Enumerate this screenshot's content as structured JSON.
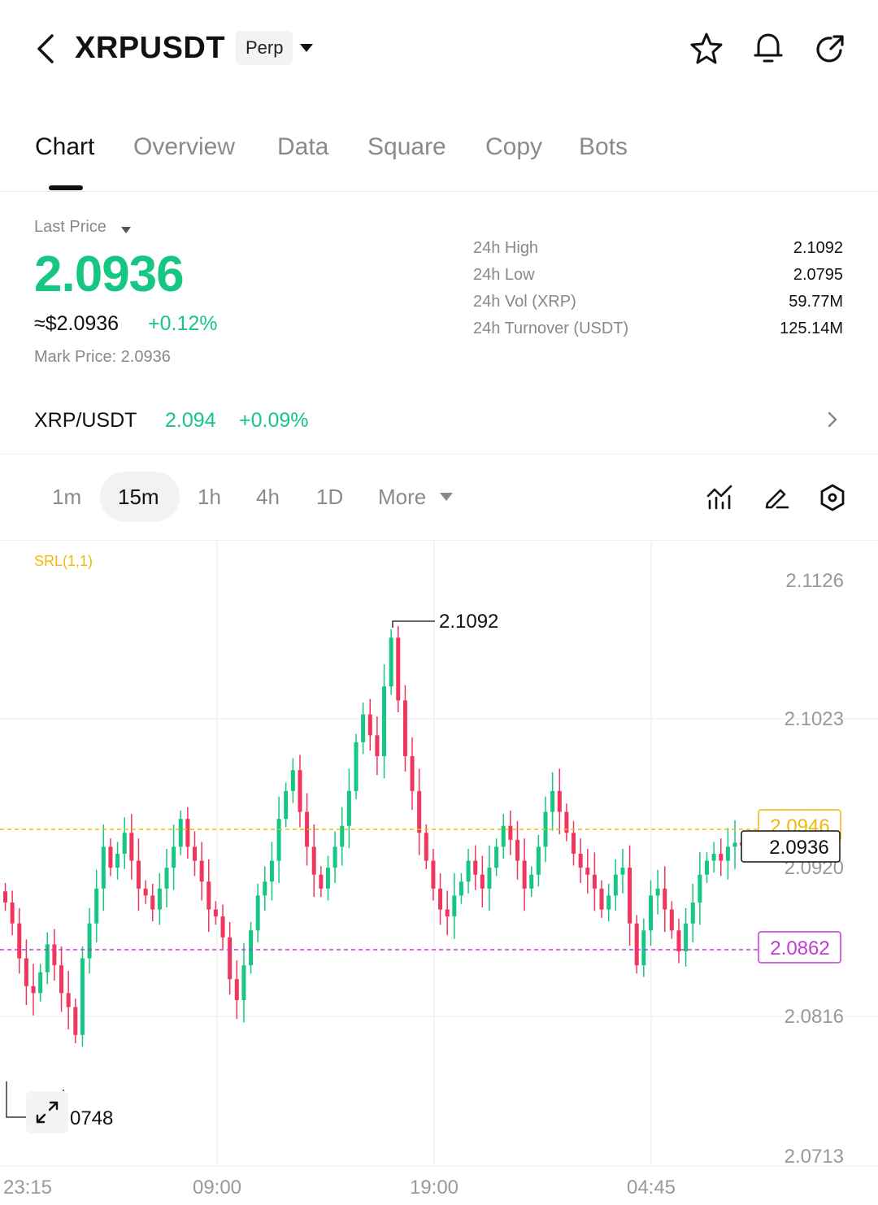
{
  "header": {
    "symbol": "XRPUSDT",
    "contract_type": "Perp",
    "icons": [
      "back-arrow-icon",
      "dropdown-caret-icon",
      "star-icon",
      "bell-icon",
      "share-icon"
    ]
  },
  "tabs": [
    {
      "label": "Chart",
      "active": true
    },
    {
      "label": "Overview"
    },
    {
      "label": "Data"
    },
    {
      "label": "Square"
    },
    {
      "label": "Copy"
    },
    {
      "label": "Bots"
    }
  ],
  "price": {
    "label": "Last Price",
    "last": "2.0936",
    "usd": "≈$2.0936",
    "change": "+0.12%",
    "mark": "Mark Price: 2.0936"
  },
  "stats": [
    {
      "label": "24h  High",
      "value": "2.1092"
    },
    {
      "label": "24h  Low",
      "value": "2.0795"
    },
    {
      "label": "24h  Vol (XRP)",
      "value": "59.77M"
    },
    {
      "label": "24h  Turnover (USDT)",
      "value": "125.14M"
    }
  ],
  "spot": {
    "pair": "XRP/USDT",
    "price": "2.094",
    "change": "+0.09%"
  },
  "timeframes": {
    "items": [
      "1m",
      "15m",
      "1h",
      "4h",
      "1D"
    ],
    "active": "15m",
    "more_label": "More"
  },
  "colors": {
    "up": "#16c784",
    "down": "#f0365d",
    "indicator": "#f0b90b",
    "marker": "#c23bd4"
  },
  "chart_data": {
    "type": "candlestick",
    "indicator_label": "SRL(1,1)",
    "y_ticks": [
      "2.1126",
      "2.1023",
      "2.0920",
      "2.0816",
      "2.0713"
    ],
    "y_range": [
      2.0713,
      2.1126
    ],
    "x_ticks": [
      "23:15",
      "09:00",
      "19:00",
      "04:45"
    ],
    "high_annotation": "2.1092",
    "low_annotation": "2.0748",
    "srl_level": "2.0946",
    "last_price_tag": "2.0936",
    "marker_level": "2.0862",
    "closes": [
      2.0895,
      2.088,
      2.0855,
      2.0835,
      2.083,
      2.0845,
      2.0865,
      2.085,
      2.083,
      2.082,
      2.08,
      2.0855,
      2.088,
      2.0905,
      2.0935,
      2.092,
      2.093,
      2.0945,
      2.0925,
      2.0905,
      2.09,
      2.089,
      2.0905,
      2.092,
      2.0935,
      2.0955,
      2.0935,
      2.0925,
      2.091,
      2.089,
      2.0885,
      2.087,
      2.084,
      2.0825,
      2.085,
      2.0875,
      2.09,
      2.091,
      2.0925,
      2.0955,
      2.0975,
      2.099,
      2.096,
      2.0935,
      2.0915,
      2.0905,
      2.092,
      2.0935,
      2.095,
      2.0975,
      2.101,
      2.103,
      2.1015,
      2.1,
      2.105,
      2.1085,
      2.104,
      2.1,
      2.0975,
      2.0945,
      2.0925,
      2.0905,
      2.089,
      2.0885,
      2.09,
      2.091,
      2.0925,
      2.0915,
      2.0905,
      2.092,
      2.0935,
      2.095,
      2.094,
      2.0925,
      2.0905,
      2.0915,
      2.0935,
      2.096,
      2.0975,
      2.096,
      2.0945,
      2.093,
      2.092,
      2.0915,
      2.0905,
      2.089,
      2.09,
      2.0915,
      2.092,
      2.088,
      2.085,
      2.0875,
      2.09,
      2.0905,
      2.089,
      2.0875,
      2.086,
      2.088,
      2.0895,
      2.0915,
      2.0925,
      2.093,
      2.0925,
      2.0935,
      2.0938,
      2.0936
    ]
  }
}
